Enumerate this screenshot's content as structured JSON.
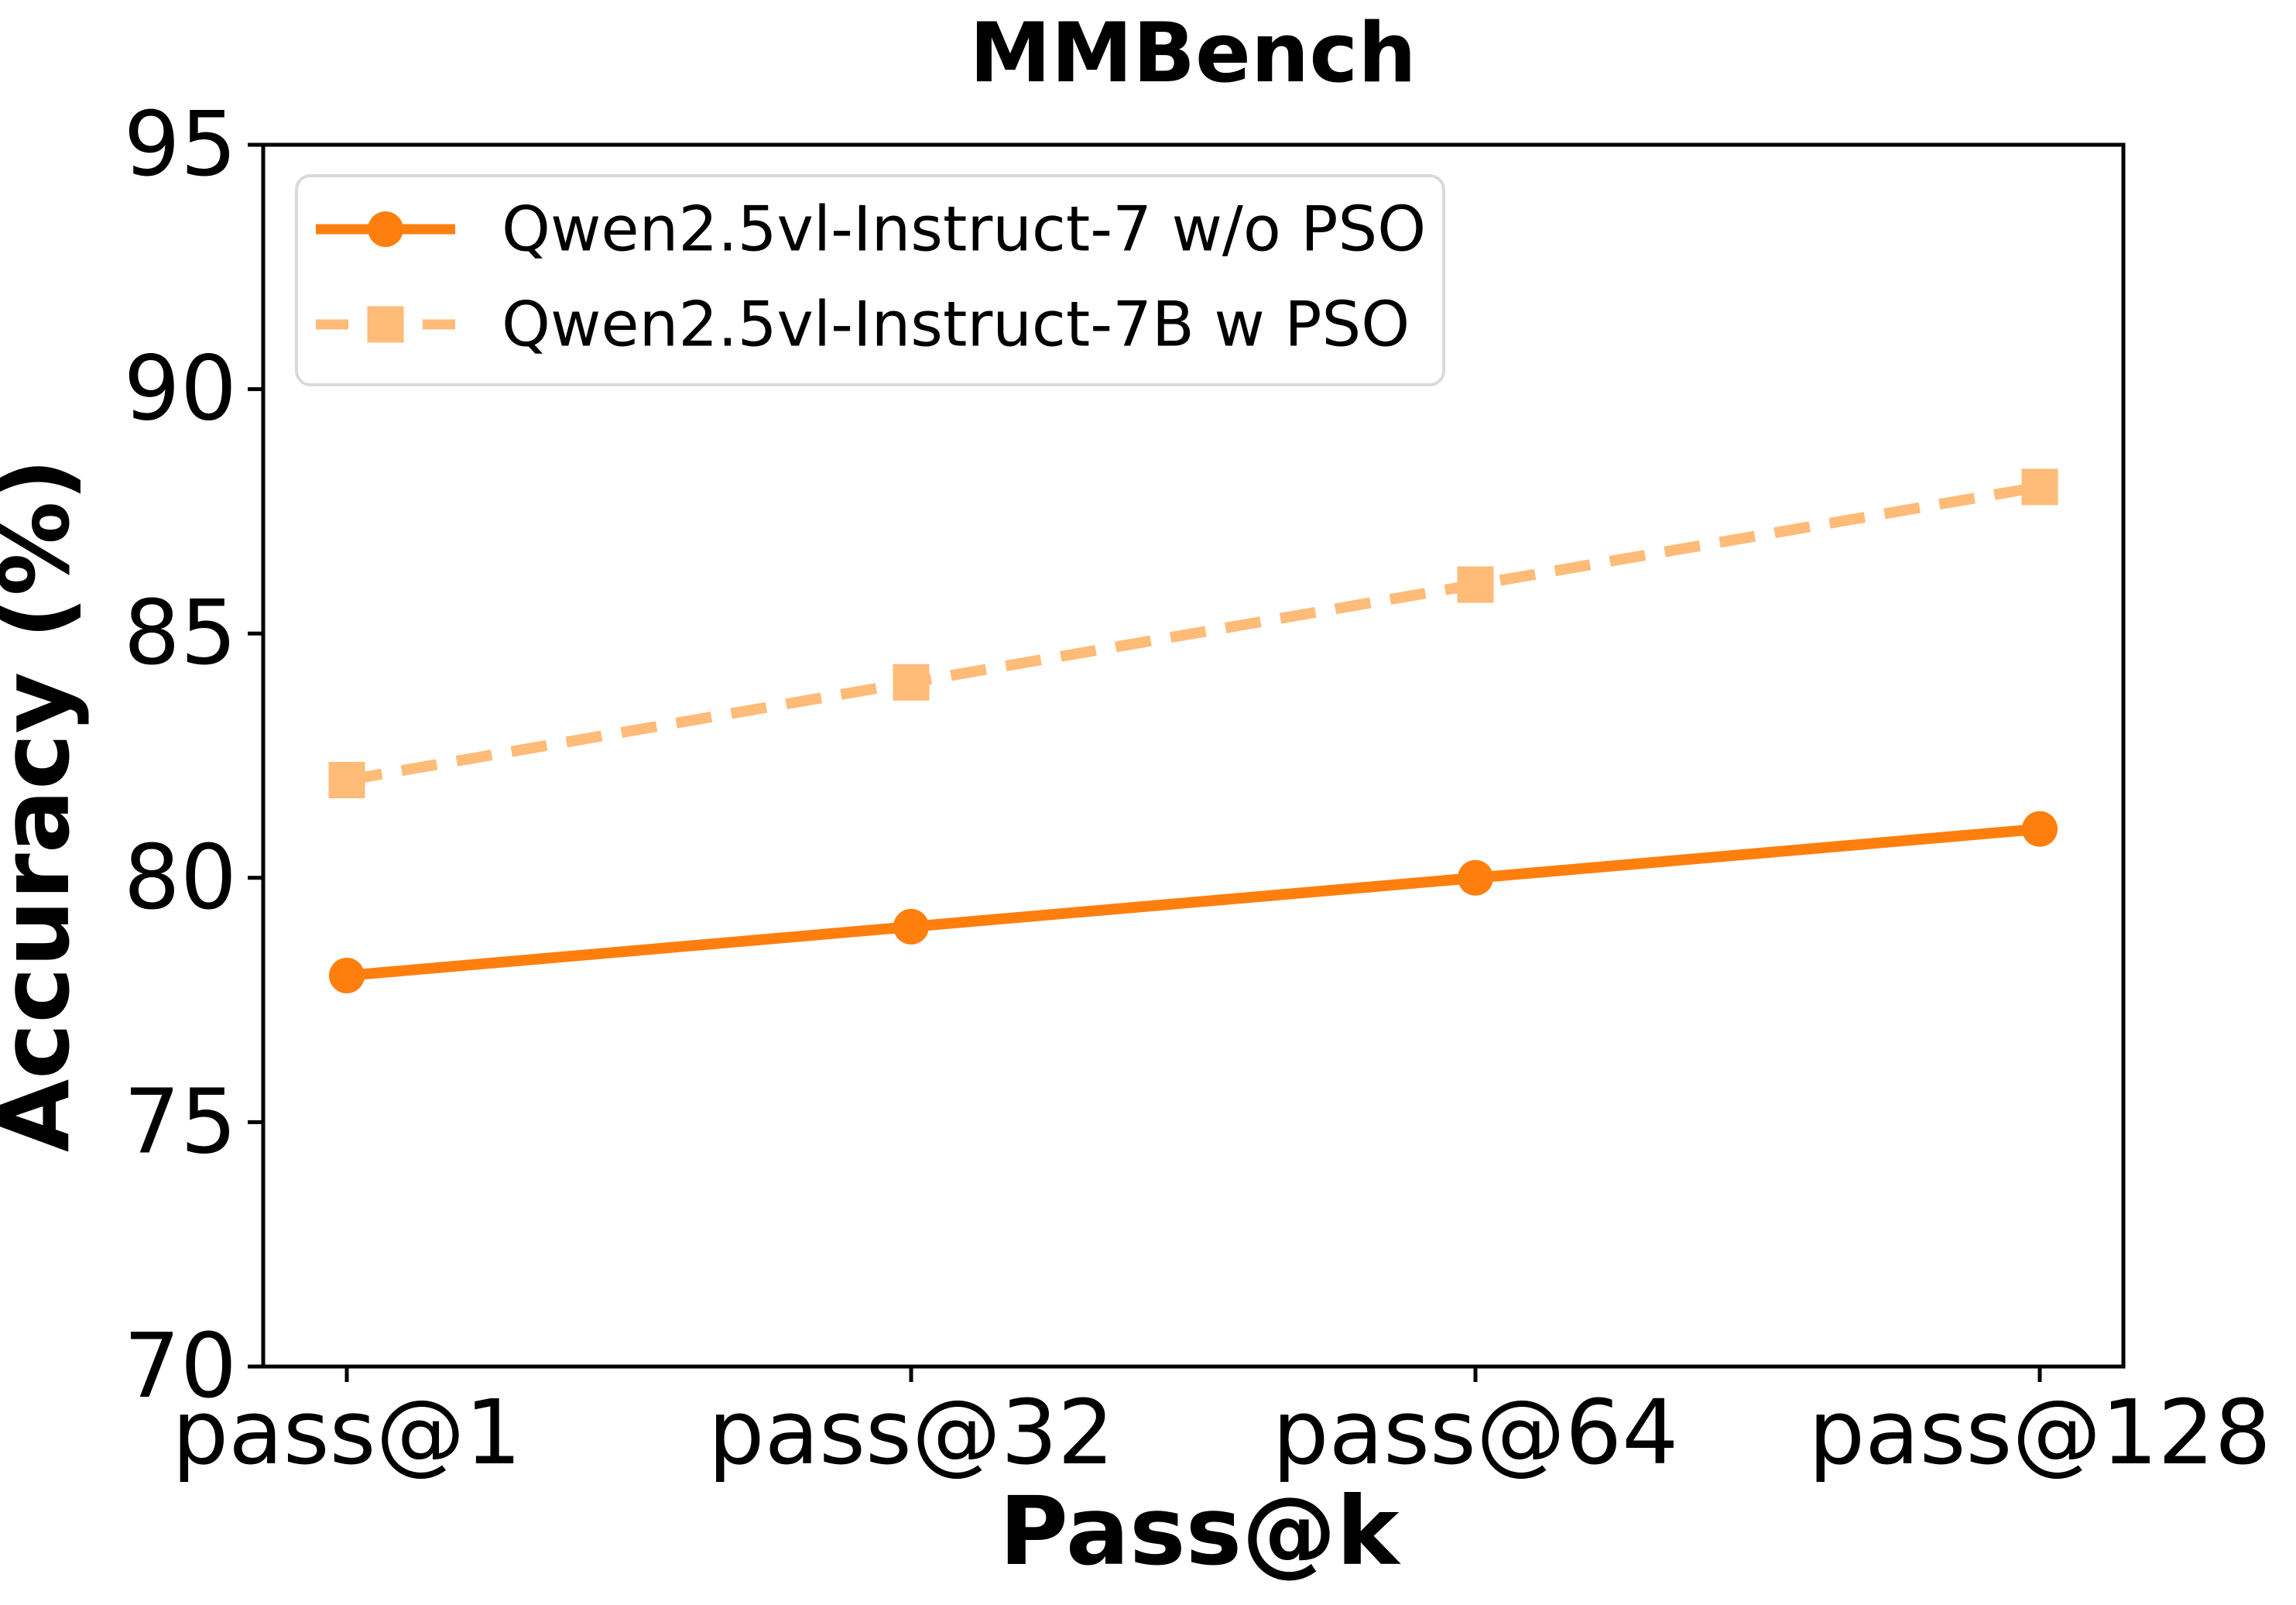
{
  "figure": {
    "background": "#ffffff",
    "axis_color": "#000000",
    "tick_label_color": "#000000"
  },
  "chart_data": {
    "type": "line",
    "title": "MMBench",
    "xlabel": "Pass@k",
    "ylabel": "Accuracy (%)",
    "categories": [
      "pass@1",
      "pass@32",
      "pass@64",
      "pass@128"
    ],
    "series": [
      {
        "name": "Qwen2.5vl-Instruct-7 w/o PSO",
        "values": [
          78,
          79,
          80,
          81
        ],
        "color": "#ff7f0e",
        "line_style": "solid",
        "marker": "circle"
      },
      {
        "name": "Qwen2.5vl-Instruct-7B w PSO",
        "values": [
          82,
          84,
          86,
          88
        ],
        "color": "#ffbb78",
        "line_style": "dashed",
        "marker": "square"
      }
    ],
    "ylim": [
      70,
      95
    ],
    "yticks": [
      70,
      75,
      80,
      85,
      90,
      95
    ],
    "grid": false,
    "legend_position": "upper left",
    "legend_border_color": "#d9d9d9",
    "legend_background": "#ffffff"
  }
}
